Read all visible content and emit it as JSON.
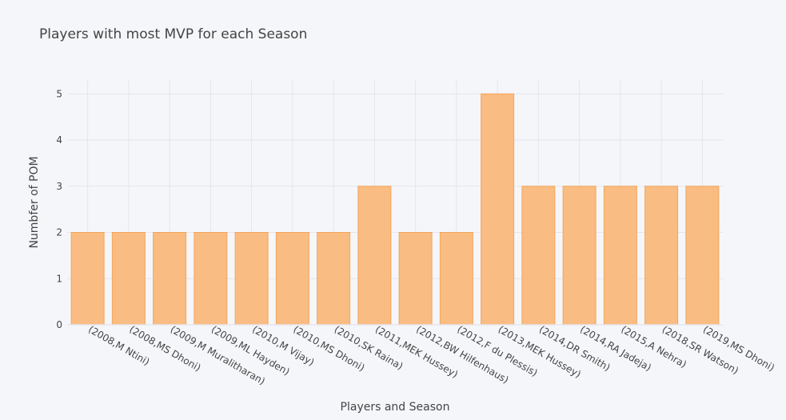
{
  "chart_data": {
    "type": "bar",
    "title": "Players with most MVP for each Season",
    "xlabel": "Players and Season",
    "ylabel": "Numbfer of POM",
    "categories": [
      "(2008,M Ntini)",
      "(2008,MS Dhoni)",
      "(2009,M Muralitharan)",
      "(2009,ML Hayden)",
      "(2010,M Vijay)",
      "(2010,MS Dhoni)",
      "(2010,SK Raina)",
      "(2011,MEK Hussey)",
      "(2012,BW Hilfenhaus)",
      "(2012,F du Plessis)",
      "(2013,MEK Hussey)",
      "(2014,DR Smith)",
      "(2014,RA Jadeja)",
      "(2015,A Nehra)",
      "(2018,SR Watson)",
      "(2019,MS Dhoni)"
    ],
    "values": [
      2,
      2,
      2,
      2,
      2,
      2,
      2,
      3,
      2,
      2,
      5,
      3,
      3,
      3,
      3,
      3
    ],
    "yticks": [
      "0",
      "1",
      "2",
      "3",
      "4",
      "5"
    ],
    "ylim": [
      0,
      5.3
    ],
    "grid": true,
    "colors": {
      "bar_fill": "#f9bc82",
      "bar_stroke": "#f5a55a",
      "grid": "#e4e6ec",
      "background": "#f5f6fa",
      "text": "#444444"
    }
  }
}
